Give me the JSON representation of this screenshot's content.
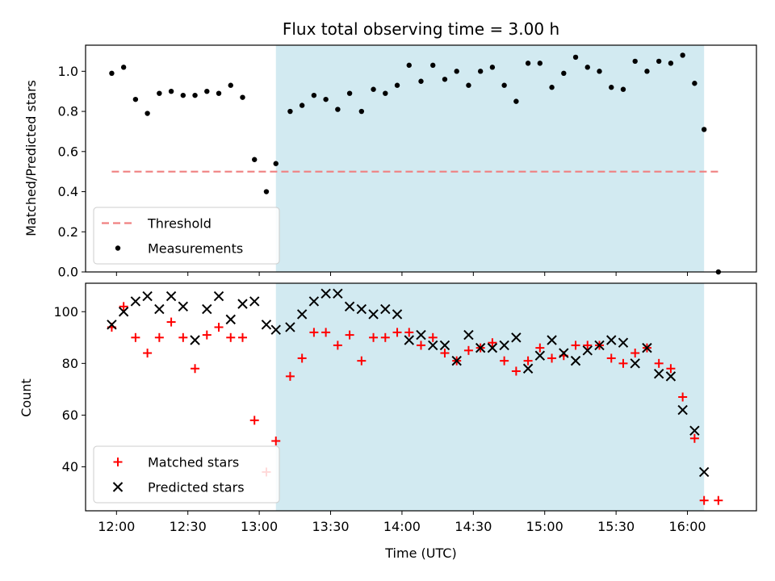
{
  "chart_data": [
    {
      "type": "scatter",
      "title": "Flux total observing time = 3.00 h",
      "xlabel": "",
      "ylabel": "Matched/Predicted stars",
      "ylim": [
        0.0,
        1.13
      ],
      "yticks": [
        0.0,
        0.2,
        0.4,
        0.6,
        0.8,
        1.0
      ],
      "xlim": [
        "11:47",
        "16:29"
      ],
      "xtick_labels_shown": false,
      "shaded_span": [
        "13:07",
        "16:07"
      ],
      "shaded_color": "#add8e6",
      "legend_position": "lower left",
      "threshold": {
        "name": "Threshold",
        "value": 0.5,
        "x_range": [
          "11:58",
          "16:13"
        ],
        "color": "#f08080",
        "style": "dashed"
      },
      "series": [
        {
          "name": "Measurements",
          "marker": "dot",
          "color": "#000000",
          "points": [
            {
              "x": "11:58",
              "y": 0.99
            },
            {
              "x": "12:03",
              "y": 1.02
            },
            {
              "x": "12:08",
              "y": 0.86
            },
            {
              "x": "12:13",
              "y": 0.79
            },
            {
              "x": "12:18",
              "y": 0.89
            },
            {
              "x": "12:23",
              "y": 0.9
            },
            {
              "x": "12:28",
              "y": 0.88
            },
            {
              "x": "12:33",
              "y": 0.88
            },
            {
              "x": "12:38",
              "y": 0.9
            },
            {
              "x": "12:43",
              "y": 0.89
            },
            {
              "x": "12:48",
              "y": 0.93
            },
            {
              "x": "12:53",
              "y": 0.87
            },
            {
              "x": "12:58",
              "y": 0.56
            },
            {
              "x": "13:03",
              "y": 0.4
            },
            {
              "x": "13:07",
              "y": 0.54
            },
            {
              "x": "13:13",
              "y": 0.8
            },
            {
              "x": "13:18",
              "y": 0.83
            },
            {
              "x": "13:23",
              "y": 0.88
            },
            {
              "x": "13:28",
              "y": 0.86
            },
            {
              "x": "13:33",
              "y": 0.81
            },
            {
              "x": "13:38",
              "y": 0.89
            },
            {
              "x": "13:43",
              "y": 0.8
            },
            {
              "x": "13:48",
              "y": 0.91
            },
            {
              "x": "13:53",
              "y": 0.89
            },
            {
              "x": "13:58",
              "y": 0.93
            },
            {
              "x": "14:03",
              "y": 1.03
            },
            {
              "x": "14:08",
              "y": 0.95
            },
            {
              "x": "14:13",
              "y": 1.03
            },
            {
              "x": "14:18",
              "y": 0.96
            },
            {
              "x": "14:23",
              "y": 1.0
            },
            {
              "x": "14:28",
              "y": 0.93
            },
            {
              "x": "14:33",
              "y": 1.0
            },
            {
              "x": "14:38",
              "y": 1.02
            },
            {
              "x": "14:43",
              "y": 0.93
            },
            {
              "x": "14:48",
              "y": 0.85
            },
            {
              "x": "14:53",
              "y": 1.04
            },
            {
              "x": "14:58",
              "y": 1.04
            },
            {
              "x": "15:03",
              "y": 0.92
            },
            {
              "x": "15:08",
              "y": 0.99
            },
            {
              "x": "15:13",
              "y": 1.07
            },
            {
              "x": "15:18",
              "y": 1.02
            },
            {
              "x": "15:23",
              "y": 1.0
            },
            {
              "x": "15:28",
              "y": 0.92
            },
            {
              "x": "15:33",
              "y": 0.91
            },
            {
              "x": "15:38",
              "y": 1.05
            },
            {
              "x": "15:43",
              "y": 1.0
            },
            {
              "x": "15:48",
              "y": 1.05
            },
            {
              "x": "15:53",
              "y": 1.04
            },
            {
              "x": "15:58",
              "y": 1.08
            },
            {
              "x": "16:03",
              "y": 0.94
            },
            {
              "x": "16:07",
              "y": 0.71
            },
            {
              "x": "16:13",
              "y": 0.0
            }
          ]
        }
      ]
    },
    {
      "type": "scatter",
      "title": "",
      "xlabel": "Time (UTC)",
      "ylabel": "Count",
      "ylim": [
        23,
        111
      ],
      "yticks": [
        40,
        60,
        80,
        100
      ],
      "xlim": [
        "11:47",
        "16:29"
      ],
      "xticks": [
        "12:00",
        "12:30",
        "13:00",
        "13:30",
        "14:00",
        "14:30",
        "15:00",
        "15:30",
        "16:00"
      ],
      "shaded_span": [
        "13:07",
        "16:07"
      ],
      "shaded_color": "#add8e6",
      "legend_position": "lower left",
      "series": [
        {
          "name": "Matched stars",
          "marker": "plus",
          "color": "#ff0000",
          "points": [
            {
              "x": "11:58",
              "y": 94
            },
            {
              "x": "12:03",
              "y": 102
            },
            {
              "x": "12:08",
              "y": 90
            },
            {
              "x": "12:13",
              "y": 84
            },
            {
              "x": "12:18",
              "y": 90
            },
            {
              "x": "12:23",
              "y": 96
            },
            {
              "x": "12:28",
              "y": 90
            },
            {
              "x": "12:33",
              "y": 78
            },
            {
              "x": "12:38",
              "y": 91
            },
            {
              "x": "12:43",
              "y": 94
            },
            {
              "x": "12:48",
              "y": 90
            },
            {
              "x": "12:53",
              "y": 90
            },
            {
              "x": "12:58",
              "y": 58
            },
            {
              "x": "13:03",
              "y": 38
            },
            {
              "x": "13:07",
              "y": 50
            },
            {
              "x": "13:13",
              "y": 75
            },
            {
              "x": "13:18",
              "y": 82
            },
            {
              "x": "13:23",
              "y": 92
            },
            {
              "x": "13:28",
              "y": 92
            },
            {
              "x": "13:33",
              "y": 87
            },
            {
              "x": "13:38",
              "y": 91
            },
            {
              "x": "13:43",
              "y": 81
            },
            {
              "x": "13:48",
              "y": 90
            },
            {
              "x": "13:53",
              "y": 90
            },
            {
              "x": "13:58",
              "y": 92
            },
            {
              "x": "14:03",
              "y": 92
            },
            {
              "x": "14:08",
              "y": 87
            },
            {
              "x": "14:13",
              "y": 90
            },
            {
              "x": "14:18",
              "y": 84
            },
            {
              "x": "14:23",
              "y": 81
            },
            {
              "x": "14:28",
              "y": 85
            },
            {
              "x": "14:33",
              "y": 86
            },
            {
              "x": "14:38",
              "y": 88
            },
            {
              "x": "14:43",
              "y": 81
            },
            {
              "x": "14:48",
              "y": 77
            },
            {
              "x": "14:53",
              "y": 81
            },
            {
              "x": "14:58",
              "y": 86
            },
            {
              "x": "15:03",
              "y": 82
            },
            {
              "x": "15:08",
              "y": 83
            },
            {
              "x": "15:13",
              "y": 87
            },
            {
              "x": "15:18",
              "y": 87
            },
            {
              "x": "15:23",
              "y": 87
            },
            {
              "x": "15:28",
              "y": 82
            },
            {
              "x": "15:33",
              "y": 80
            },
            {
              "x": "15:38",
              "y": 84
            },
            {
              "x": "15:43",
              "y": 86
            },
            {
              "x": "15:48",
              "y": 80
            },
            {
              "x": "15:53",
              "y": 78
            },
            {
              "x": "15:58",
              "y": 67
            },
            {
              "x": "16:03",
              "y": 51
            },
            {
              "x": "16:07",
              "y": 27
            },
            {
              "x": "16:13",
              "y": 27
            }
          ]
        },
        {
          "name": "Predicted stars",
          "marker": "x",
          "color": "#000000",
          "points": [
            {
              "x": "11:58",
              "y": 95
            },
            {
              "x": "12:03",
              "y": 100
            },
            {
              "x": "12:08",
              "y": 104
            },
            {
              "x": "12:13",
              "y": 106
            },
            {
              "x": "12:18",
              "y": 101
            },
            {
              "x": "12:23",
              "y": 106
            },
            {
              "x": "12:28",
              "y": 102
            },
            {
              "x": "12:33",
              "y": 89
            },
            {
              "x": "12:38",
              "y": 101
            },
            {
              "x": "12:43",
              "y": 106
            },
            {
              "x": "12:48",
              "y": 97
            },
            {
              "x": "12:53",
              "y": 103
            },
            {
              "x": "12:58",
              "y": 104
            },
            {
              "x": "13:03",
              "y": 95
            },
            {
              "x": "13:07",
              "y": 93
            },
            {
              "x": "13:13",
              "y": 94
            },
            {
              "x": "13:18",
              "y": 99
            },
            {
              "x": "13:23",
              "y": 104
            },
            {
              "x": "13:28",
              "y": 107
            },
            {
              "x": "13:33",
              "y": 107
            },
            {
              "x": "13:38",
              "y": 102
            },
            {
              "x": "13:43",
              "y": 101
            },
            {
              "x": "13:48",
              "y": 99
            },
            {
              "x": "13:53",
              "y": 101
            },
            {
              "x": "13:58",
              "y": 99
            },
            {
              "x": "14:03",
              "y": 89
            },
            {
              "x": "14:08",
              "y": 91
            },
            {
              "x": "14:13",
              "y": 87
            },
            {
              "x": "14:18",
              "y": 87
            },
            {
              "x": "14:23",
              "y": 81
            },
            {
              "x": "14:28",
              "y": 91
            },
            {
              "x": "14:33",
              "y": 86
            },
            {
              "x": "14:38",
              "y": 86
            },
            {
              "x": "14:43",
              "y": 87
            },
            {
              "x": "14:48",
              "y": 90
            },
            {
              "x": "14:53",
              "y": 78
            },
            {
              "x": "14:58",
              "y": 83
            },
            {
              "x": "15:03",
              "y": 89
            },
            {
              "x": "15:08",
              "y": 84
            },
            {
              "x": "15:13",
              "y": 81
            },
            {
              "x": "15:18",
              "y": 85
            },
            {
              "x": "15:23",
              "y": 87
            },
            {
              "x": "15:28",
              "y": 89
            },
            {
              "x": "15:33",
              "y": 88
            },
            {
              "x": "15:38",
              "y": 80
            },
            {
              "x": "15:43",
              "y": 86
            },
            {
              "x": "15:48",
              "y": 76
            },
            {
              "x": "15:53",
              "y": 75
            },
            {
              "x": "15:58",
              "y": 62
            },
            {
              "x": "16:03",
              "y": 54
            },
            {
              "x": "16:07",
              "y": 38
            }
          ]
        }
      ]
    }
  ]
}
